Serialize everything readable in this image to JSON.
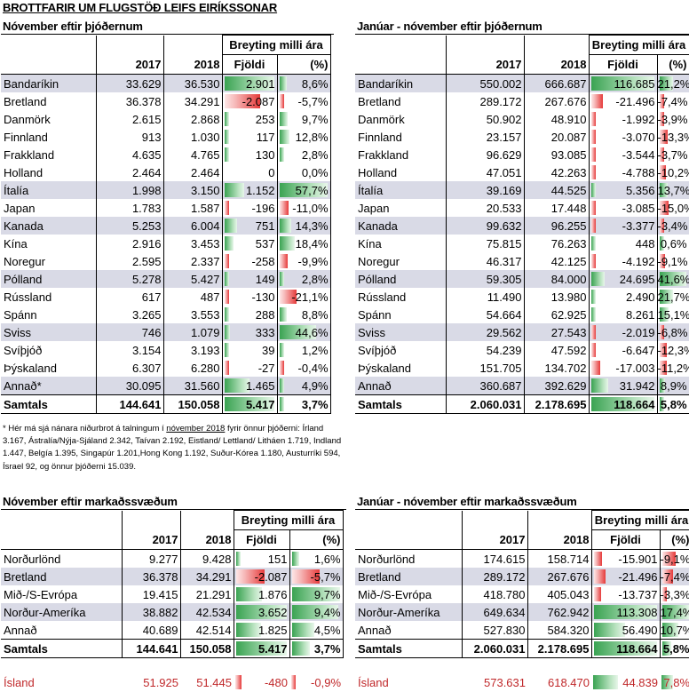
{
  "title": "BROTTFARIR UM FLUGSTÖÐ LEIFS EIRÍKSSONAR",
  "colors": {
    "row_shade": "#d9dae6",
    "bar_pos": "#3aa352",
    "bar_neg": "#e63a3a",
    "iceland_text": "#c0282a"
  },
  "header": {
    "group": "Breyting milli ára",
    "y1": "2017",
    "y2": "2018",
    "count": "Fjöldi",
    "pct": "(%)"
  },
  "sections": [
    {
      "title": "Nóvember eftir þjóðernum",
      "rows": [
        [
          "Bandaríkin",
          "33.629",
          "36.530",
          "2.901",
          "8,6%"
        ],
        [
          "Bretland",
          "36.378",
          "34.291",
          "-2.087",
          "-5,7%"
        ],
        [
          "Danmörk",
          "2.615",
          "2.868",
          "253",
          "9,7%"
        ],
        [
          "Finnland",
          "913",
          "1.030",
          "117",
          "12,8%"
        ],
        [
          "Frakkland",
          "4.635",
          "4.765",
          "130",
          "2,8%"
        ],
        [
          "Holland",
          "2.464",
          "2.464",
          "0",
          "0,0%"
        ],
        [
          "Ítalía",
          "1.998",
          "3.150",
          "1.152",
          "57,7%"
        ],
        [
          "Japan",
          "1.783",
          "1.587",
          "-196",
          "-11,0%"
        ],
        [
          "Kanada",
          "5.253",
          "6.004",
          "751",
          "14,3%"
        ],
        [
          "Kína",
          "2.916",
          "3.453",
          "537",
          "18,4%"
        ],
        [
          "Noregur",
          "2.595",
          "2.337",
          "-258",
          "-9,9%"
        ],
        [
          "Pólland",
          "5.278",
          "5.427",
          "149",
          "2,8%"
        ],
        [
          "Rússland",
          "617",
          "487",
          "-130",
          "-21,1%"
        ],
        [
          "Spánn",
          "3.265",
          "3.553",
          "288",
          "8,8%"
        ],
        [
          "Sviss",
          "746",
          "1.079",
          "333",
          "44,6%"
        ],
        [
          "Svíþjóð",
          "3.154",
          "3.193",
          "39",
          "1,2%"
        ],
        [
          "Þýskaland",
          "6.307",
          "6.280",
          "-27",
          "-0,4%"
        ],
        [
          "Annað*",
          "30.095",
          "31.560",
          "1.465",
          "4,9%"
        ]
      ],
      "total": [
        "Samtals",
        "144.641",
        "150.058",
        "5.417",
        "3,7%"
      ]
    },
    {
      "title": "Janúar - nóvember eftir þjóðernum",
      "rows": [
        [
          "Bandaríkin",
          "550.002",
          "666.687",
          "116.685",
          "21,2%"
        ],
        [
          "Bretland",
          "289.172",
          "267.676",
          "-21.496",
          "-7,4%"
        ],
        [
          "Danmörk",
          "50.902",
          "48.910",
          "-1.992",
          "-3,9%"
        ],
        [
          "Finnland",
          "23.157",
          "20.087",
          "-3.070",
          "-13,3%"
        ],
        [
          "Frakkland",
          "96.629",
          "93.085",
          "-3.544",
          "-3,7%"
        ],
        [
          "Holland",
          "47.051",
          "42.263",
          "-4.788",
          "-10,2%"
        ],
        [
          "Ítalía",
          "39.169",
          "44.525",
          "5.356",
          "13,7%"
        ],
        [
          "Japan",
          "20.533",
          "17.448",
          "-3.085",
          "-15,0%"
        ],
        [
          "Kanada",
          "99.632",
          "96.255",
          "-3.377",
          "-3,4%"
        ],
        [
          "Kína",
          "75.815",
          "76.263",
          "448",
          "0,6%"
        ],
        [
          "Noregur",
          "46.317",
          "42.125",
          "-4.192",
          "-9,1%"
        ],
        [
          "Pólland",
          "59.305",
          "84.000",
          "24.695",
          "41,6%"
        ],
        [
          "Rússland",
          "11.490",
          "13.980",
          "2.490",
          "21,7%"
        ],
        [
          "Spánn",
          "54.664",
          "62.925",
          "8.261",
          "15,1%"
        ],
        [
          "Sviss",
          "29.562",
          "27.543",
          "-2.019",
          "-6,8%"
        ],
        [
          "Svíþjóð",
          "54.239",
          "47.592",
          "-6.647",
          "-12,3%"
        ],
        [
          "Þýskaland",
          "151.705",
          "134.702",
          "-17.003",
          "-11,2%"
        ],
        [
          "Annað",
          "360.687",
          "392.629",
          "31.942",
          "8,9%"
        ]
      ],
      "total": [
        "Samtals",
        "2.060.031",
        "2.178.695",
        "118.664",
        "5,8%"
      ]
    },
    {
      "title": "Nóvember eftir markaðssvæðum",
      "rows": [
        [
          "Norðurlönd",
          "9.277",
          "9.428",
          "151",
          "1,6%"
        ],
        [
          "Bretland",
          "36.378",
          "34.291",
          "-2.087",
          "-5,7%"
        ],
        [
          "Mið-/S-Evrópa",
          "19.415",
          "21.291",
          "1.876",
          "9,7%"
        ],
        [
          "Norður-Ameríka",
          "38.882",
          "42.534",
          "3.652",
          "9,4%"
        ],
        [
          "Annað",
          "40.689",
          "42.514",
          "1.825",
          "4,5%"
        ]
      ],
      "total": [
        "Samtals",
        "144.641",
        "150.058",
        "5.417",
        "3,7%"
      ],
      "iceland": [
        "Ísland",
        "51.925",
        "51.445",
        "-480",
        "-0,9%"
      ]
    },
    {
      "title": "Janúar - nóvember eftir markaðssvæðum",
      "rows": [
        [
          "Norðurlönd",
          "174.615",
          "158.714",
          "-15.901",
          "-9,1%"
        ],
        [
          "Bretland",
          "289.172",
          "267.676",
          "-21.496",
          "-7,4%"
        ],
        [
          "Mið-/S-Evrópa",
          "418.780",
          "405.043",
          "-13.737",
          "-3,3%"
        ],
        [
          "Norður-Ameríka",
          "649.634",
          "762.942",
          "113.308",
          "17,4%"
        ],
        [
          "Annað",
          "527.830",
          "584.320",
          "56.490",
          "10,7%"
        ]
      ],
      "total": [
        "Samtals",
        "2.060.031",
        "2.178.695",
        "118.664",
        "5,8%"
      ],
      "iceland": [
        "Ísland",
        "573.631",
        "618.470",
        "44.839",
        "7,8%"
      ]
    }
  ],
  "footnote": {
    "pre": "* Hér má sjá nánara niðurbrot á talningum í ",
    "link": "nóvember 2018",
    "post": " fyrir önnur þjóðerni: Írland 3.167, Ástralía/Nýja-Sjáland 2.342, Taívan 2.192, Eistland/ Lettland/ Litháen 1.719, Indland 1.447, Belgía 1.395, Singapúr 1.201,Hong Kong 1.192, Suður-Kórea 1.180, Austurríki 594, Ísrael 92, og önnur þjóðerni 15.039."
  }
}
